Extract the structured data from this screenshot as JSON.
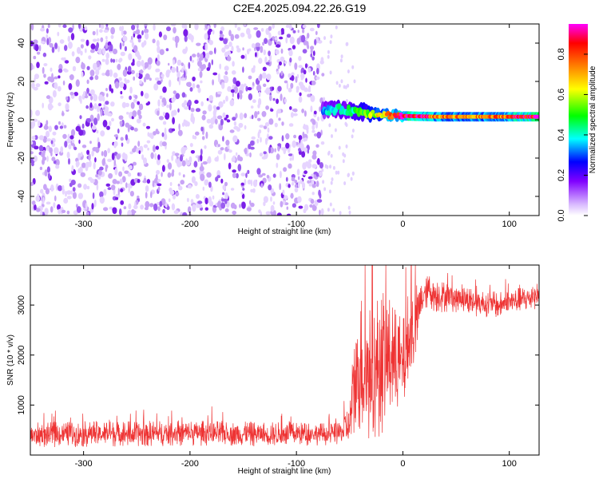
{
  "chart_data": [
    {
      "id": "spectrogram",
      "type": "heatmap",
      "title": "C2E4.2025.094.22.26.G19",
      "xlabel": "Height of straight line (km)",
      "ylabel": "Frequency (Hz)",
      "xlim": [
        -350,
        128
      ],
      "ylim": [
        -50,
        50
      ],
      "xticks": [
        -300,
        -200,
        -100,
        0,
        100
      ],
      "yticks": [
        -40,
        -20,
        0,
        20,
        40
      ],
      "noise_region_x": [
        -350,
        -75
      ],
      "faint_noise_x": [
        -75,
        -45
      ],
      "carrier": {
        "x": [
          -75,
          -60,
          -45,
          -30,
          -15,
          0,
          15,
          30,
          60,
          90,
          128
        ],
        "freq": [
          4.5,
          5.5,
          4.5,
          3.5,
          2.5,
          2.0,
          1.8,
          1.6,
          1.6,
          1.6,
          1.6
        ],
        "amplitude": [
          0.35,
          0.4,
          0.45,
          0.55,
          0.7,
          0.85,
          0.9,
          0.75,
          0.7,
          0.75,
          0.95
        ]
      },
      "colorbar": {
        "label": "Normalized spectral amplitude",
        "range": [
          0,
          0.95
        ],
        "ticks": [
          0.0,
          0.2,
          0.4,
          0.6,
          0.8
        ],
        "tick_labels": [
          "0.0",
          "0.2",
          "0.4",
          "0.6",
          "0.8"
        ],
        "colors": [
          "#ffffff",
          "#8000ff",
          "#0000ff",
          "#00ffff",
          "#00ff00",
          "#ffff00",
          "#ff8000",
          "#ff0000",
          "#ff00ff"
        ]
      }
    },
    {
      "id": "snr",
      "type": "line",
      "title": "",
      "xlabel": "Height of straight line (km)",
      "ylabel": "SNR (10 * v/v)",
      "xlim": [
        -350,
        128
      ],
      "ylim": [
        0,
        3800
      ],
      "xticks": [
        -300,
        -200,
        -100,
        0,
        100
      ],
      "yticks": [
        1000,
        2000,
        3000
      ],
      "series": [
        {
          "color": "#ee3333",
          "envelope": {
            "x": [
              -350,
              -300,
              -250,
              -200,
              -150,
              -100,
              -60,
              -50,
              -45,
              -40,
              -30,
              -20,
              -10,
              0,
              5,
              10,
              15,
              20,
              25,
              30,
              50,
              70,
              90,
              110,
              128
            ],
            "mean": [
              400,
              420,
              430,
              440,
              420,
              420,
              420,
              600,
              1500,
              1800,
              1600,
              1900,
              1900,
              1800,
              2200,
              2500,
              2900,
              3200,
              3300,
              3200,
              3150,
              3050,
              3000,
              3100,
              3200
            ],
            "spread": [
              250,
              260,
              260,
              260,
              250,
              240,
              220,
              500,
              1200,
              1500,
              1400,
              1500,
              1200,
              900,
              1100,
              1000,
              500,
              300,
              350,
              350,
              300,
              280,
              260,
              260,
              260
            ]
          }
        }
      ]
    }
  ]
}
